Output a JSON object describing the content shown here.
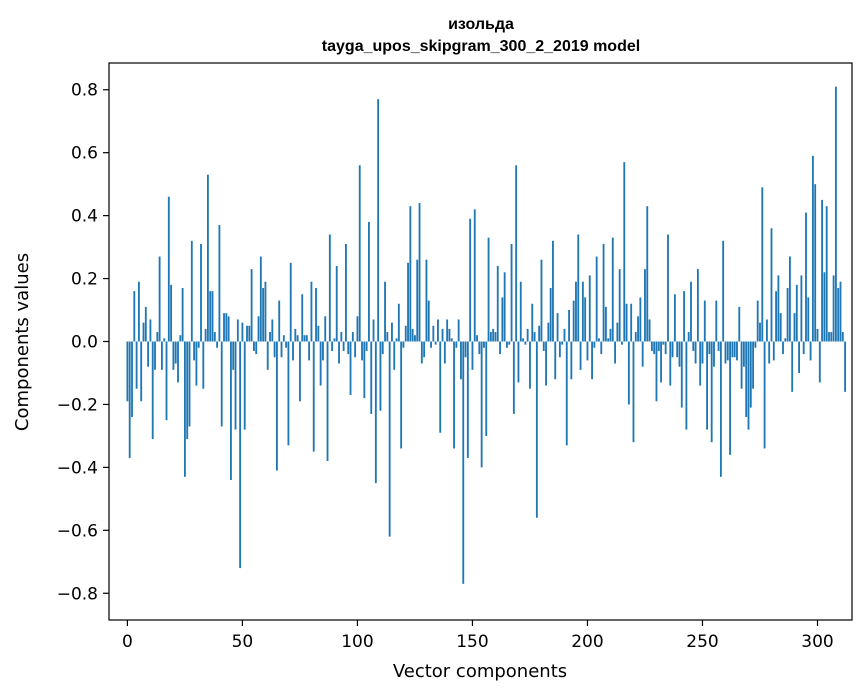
{
  "chart_data": {
    "type": "bar",
    "title": "изольда",
    "subtitle": "tayga_upos_skipgram_300_2_2019 model",
    "xlabel": "Vector components",
    "ylabel": "Components values",
    "xlim": [
      -8,
      315
    ],
    "ylim": [
      -0.885,
      0.885
    ],
    "xticks": [
      0,
      50,
      100,
      150,
      200,
      250,
      300
    ],
    "xtick_labels": [
      "0",
      "50",
      "100",
      "150",
      "200",
      "250",
      "300"
    ],
    "yticks": [
      -0.8,
      -0.6,
      -0.4,
      -0.2,
      0.0,
      0.2,
      0.4,
      0.6,
      0.8
    ],
    "ytick_labels": [
      "−0.8",
      "−0.6",
      "−0.4",
      "−0.2",
      "0.0",
      "0.2",
      "0.4",
      "0.6",
      "0.8"
    ],
    "bar_color": "#1f77b4",
    "series": [
      {
        "name": "изольда",
        "values": [
          -0.19,
          -0.37,
          -0.24,
          0.16,
          -0.15,
          0.19,
          -0.19,
          0.06,
          0.11,
          -0.08,
          0.07,
          -0.31,
          -0.09,
          0.03,
          0.27,
          -0.09,
          0.01,
          -0.25,
          0.46,
          0.18,
          -0.09,
          -0.07,
          -0.13,
          0.02,
          0.17,
          -0.43,
          -0.31,
          -0.27,
          0.32,
          -0.06,
          -0.14,
          -0.02,
          0.31,
          -0.15,
          0.04,
          0.53,
          0.16,
          0.16,
          0.03,
          -0.02,
          0.37,
          -0.27,
          0.09,
          0.09,
          0.08,
          -0.44,
          -0.09,
          -0.28,
          0.07,
          -0.72,
          0.06,
          -0.28,
          0.05,
          0.05,
          0.23,
          -0.03,
          -0.04,
          0.08,
          0.27,
          0.17,
          0.19,
          -0.09,
          0.03,
          0.07,
          -0.05,
          -0.41,
          0.13,
          -0.05,
          0.02,
          -0.02,
          -0.33,
          0.25,
          -0.06,
          0.04,
          0.02,
          -0.19,
          0.15,
          0.02,
          0.02,
          -0.06,
          0.19,
          -0.35,
          0.17,
          0.05,
          -0.14,
          -0.06,
          0.08,
          -0.38,
          0.34,
          -0.03,
          0.01,
          0.24,
          -0.07,
          0.03,
          -0.03,
          0.31,
          -0.04,
          -0.17,
          0.03,
          -0.05,
          0.08,
          0.56,
          -0.06,
          -0.18,
          -0.03,
          0.38,
          -0.23,
          0.07,
          -0.45,
          0.77,
          -0.22,
          -0.04,
          0.19,
          0.03,
          -0.62,
          0.06,
          -0.09,
          0.01,
          0.12,
          -0.34,
          -0.02,
          0.05,
          0.25,
          0.43,
          0.04,
          0.02,
          0.26,
          0.44,
          -0.07,
          -0.05,
          0.26,
          0.13,
          -0.02,
          0.05,
          -0.01,
          0.07,
          -0.29,
          0.04,
          -0.07,
          0.07,
          0.04,
          0.01,
          -0.34,
          -0.02,
          0.07,
          -0.12,
          -0.77,
          -0.05,
          -0.37,
          0.39,
          -0.09,
          0.42,
          0.02,
          -0.04,
          -0.4,
          -0.02,
          -0.3,
          0.33,
          0.03,
          0.04,
          0.03,
          0.24,
          -0.04,
          0.14,
          0.22,
          -0.02,
          -0.01,
          0.31,
          -0.23,
          0.56,
          -0.13,
          0.19,
          0.01,
          -0.01,
          0.04,
          -0.15,
          0.12,
          0.03,
          -0.56,
          0.05,
          0.26,
          -0.03,
          -0.14,
          0.06,
          0.17,
          0.32,
          -0.12,
          0.09,
          -0.05,
          -0.01,
          0.04,
          -0.33,
          0.1,
          -0.12,
          0.13,
          0.19,
          0.34,
          -0.09,
          0.19,
          0.14,
          -0.06,
          0.21,
          -0.12,
          -0.02,
          0.27,
          0.01,
          -0.04,
          0.31,
          0.11,
          0.01,
          0.04,
          0.33,
          -0.07,
          0.06,
          0.23,
          -0.01,
          0.57,
          0.12,
          -0.2,
          0.12,
          -0.32,
          0.03,
          0.08,
          0.14,
          -0.08,
          0.23,
          0.43,
          0.07,
          -0.03,
          -0.04,
          -0.19,
          -0.03,
          -0.13,
          -0.01,
          -0.04,
          0.34,
          -0.14,
          -0.05,
          0.15,
          -0.05,
          -0.08,
          -0.21,
          0.16,
          -0.28,
          0.03,
          0.19,
          -0.03,
          -0.07,
          0.23,
          -0.14,
          -0.07,
          0.13,
          -0.28,
          -0.04,
          -0.32,
          -0.08,
          0.13,
          -0.03,
          -0.43,
          0.32,
          -0.07,
          -0.06,
          -0.36,
          -0.05,
          -0.05,
          -0.06,
          0.11,
          -0.15,
          -0.08,
          -0.24,
          -0.28,
          -0.21,
          -0.15,
          -0.02,
          0.13,
          0.06,
          0.49,
          -0.34,
          0.07,
          -0.07,
          0.36,
          -0.06,
          0.16,
          0.21,
          0.09,
          -0.04,
          0.01,
          0.17,
          0.27,
          -0.16,
          0.09,
          0.18,
          -0.1,
          0.21,
          -0.04,
          0.41,
          0.14,
          -0.06,
          0.59,
          0.5,
          0.04,
          -0.13,
          0.45,
          0.22,
          0.43,
          0.03,
          0.03,
          0.21,
          0.81,
          0.17,
          0.19,
          0.03,
          -0.16
        ]
      }
    ]
  }
}
